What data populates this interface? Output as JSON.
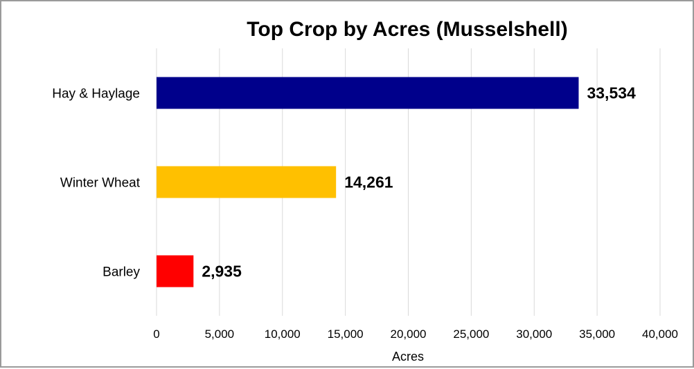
{
  "chart_data": {
    "type": "bar",
    "orientation": "horizontal",
    "title": "Top Crop by Acres (Musselshell)",
    "xlabel": "Acres",
    "ylabel": "",
    "categories": [
      "Hay & Haylage",
      "Winter Wheat",
      "Barley"
    ],
    "values": [
      33534,
      14261,
      2935
    ],
    "value_labels": [
      "33,534",
      "14,261",
      "2,935"
    ],
    "colors": [
      "#00008B",
      "#FFC000",
      "#FF0000"
    ],
    "xlim": [
      0,
      40000
    ],
    "x_ticks": [
      0,
      5000,
      10000,
      15000,
      20000,
      25000,
      30000,
      35000,
      40000
    ],
    "x_tick_labels": [
      "0",
      "5,000",
      "10,000",
      "15,000",
      "20,000",
      "25,000",
      "30,000",
      "35,000",
      "40,000"
    ],
    "grid": true,
    "legend": "none"
  }
}
